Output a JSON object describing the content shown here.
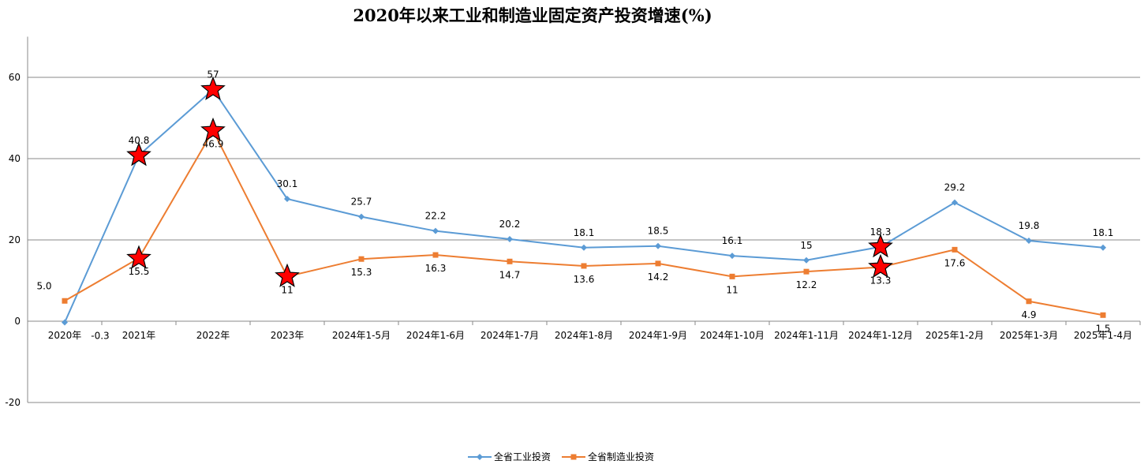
{
  "chart_data": {
    "type": "line",
    "title": "2020年以来工业和制造业固定资产投资增速(%)",
    "xlabel": "",
    "ylabel": "",
    "ylim": [
      -20,
      70
    ],
    "yticks": [
      -20,
      0,
      20,
      40,
      60
    ],
    "grid": true,
    "legend_position": "bottom",
    "categories": [
      "2020年",
      "2021年",
      "2022年",
      "2023年",
      "2024年1-5月",
      "2024年1-6月",
      "2024年1-7月",
      "2024年1-8月",
      "2024年1-9月",
      "2024年1-10月",
      "2024年1-11月",
      "2024年1-12月",
      "2025年1-2月",
      "2025年1-3月",
      "2025年1-4月"
    ],
    "series": [
      {
        "name": "全省工业投资",
        "color": "#5B9BD5",
        "marker": "diamond",
        "values": [
          -0.3,
          40.8,
          57,
          30.1,
          25.7,
          22.2,
          20.2,
          18.1,
          18.5,
          16.1,
          15,
          18.3,
          29.2,
          19.8,
          18.1
        ],
        "labels": [
          "-0.3",
          "40.8",
          "57",
          "30.1",
          "25.7",
          "22.2",
          "20.2",
          "18.1",
          "18.5",
          "16.1",
          "15",
          "18.3",
          "29.2",
          "19.8",
          "18.1"
        ],
        "label_position": [
          "below",
          "above",
          "above",
          "above",
          "above",
          "above",
          "above",
          "above",
          "above",
          "above",
          "above",
          "above",
          "above",
          "above",
          "above"
        ],
        "highlight": [
          false,
          true,
          true,
          false,
          false,
          false,
          false,
          false,
          false,
          false,
          false,
          true,
          false,
          false,
          false
        ]
      },
      {
        "name": "全省制造业投资",
        "color": "#ED7D31",
        "marker": "square",
        "values": [
          5.0,
          15.5,
          46.9,
          11,
          15.3,
          16.3,
          14.7,
          13.6,
          14.2,
          11,
          12.2,
          13.3,
          17.6,
          4.9,
          1.5
        ],
        "labels": [
          "5.0",
          "15.5",
          "46.9",
          "11",
          "15.3",
          "16.3",
          "14.7",
          "13.6",
          "14.2",
          "11",
          "12.2",
          "13.3",
          "17.6",
          "4.9",
          "1.5"
        ],
        "label_position": [
          "above",
          "below",
          "below",
          "below",
          "below",
          "below",
          "below",
          "below",
          "below",
          "below",
          "below",
          "below",
          "below",
          "below",
          "below"
        ],
        "highlight": [
          false,
          true,
          true,
          true,
          false,
          false,
          false,
          false,
          false,
          false,
          false,
          true,
          false,
          false,
          false
        ]
      }
    ]
  }
}
